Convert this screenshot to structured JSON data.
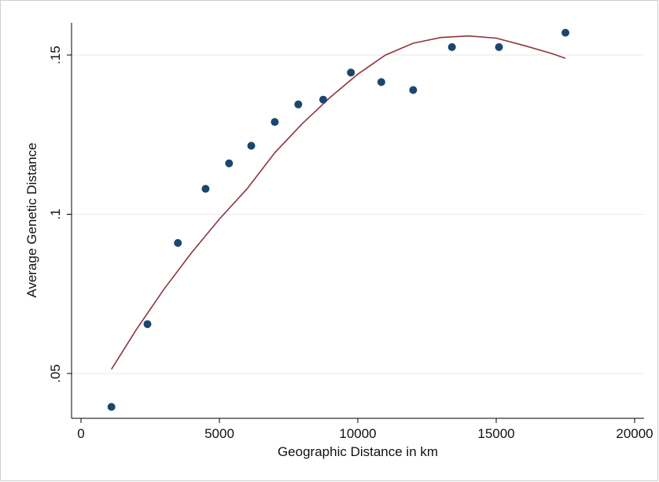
{
  "chart_data": {
    "type": "scatter",
    "title": "",
    "xlabel": "Geographic Distance in km",
    "ylabel": "Average Genetic Distance",
    "xlim": [
      0,
      20000
    ],
    "ylim": [
      0.04,
      0.16
    ],
    "grid": true,
    "legend": "none",
    "x_ticks": [
      {
        "value": 0,
        "label": "0"
      },
      {
        "value": 5000,
        "label": "5000"
      },
      {
        "value": 10000,
        "label": "10000"
      },
      {
        "value": 15000,
        "label": "15000"
      },
      {
        "value": 20000,
        "label": "20000"
      }
    ],
    "y_ticks": [
      {
        "value": 0.05,
        "label": ".05"
      },
      {
        "value": 0.1,
        "label": ".1"
      },
      {
        "value": 0.15,
        "label": ".15"
      }
    ],
    "series": [
      {
        "type": "scatter",
        "color": "#1a476f",
        "points": [
          {
            "x": 1100,
            "y": 0.0395
          },
          {
            "x": 2400,
            "y": 0.0655
          },
          {
            "x": 3500,
            "y": 0.091
          },
          {
            "x": 4500,
            "y": 0.108
          },
          {
            "x": 5350,
            "y": 0.116
          },
          {
            "x": 6150,
            "y": 0.1215
          },
          {
            "x": 7000,
            "y": 0.129
          },
          {
            "x": 7850,
            "y": 0.1345
          },
          {
            "x": 8750,
            "y": 0.136
          },
          {
            "x": 9750,
            "y": 0.1445
          },
          {
            "x": 10850,
            "y": 0.1415
          },
          {
            "x": 12000,
            "y": 0.139
          },
          {
            "x": 13400,
            "y": 0.1525
          },
          {
            "x": 15100,
            "y": 0.1525
          },
          {
            "x": 17500,
            "y": 0.157
          }
        ]
      },
      {
        "type": "line",
        "color": "#90353b",
        "points": [
          {
            "x": 1100,
            "y": 0.0513
          },
          {
            "x": 2000,
            "y": 0.0638
          },
          {
            "x": 3000,
            "y": 0.0765
          },
          {
            "x": 4000,
            "y": 0.088
          },
          {
            "x": 5000,
            "y": 0.0985
          },
          {
            "x": 6000,
            "y": 0.108
          },
          {
            "x": 7000,
            "y": 0.1193
          },
          {
            "x": 8000,
            "y": 0.1285
          },
          {
            "x": 9000,
            "y": 0.1367
          },
          {
            "x": 10000,
            "y": 0.144
          },
          {
            "x": 11000,
            "y": 0.15
          },
          {
            "x": 12000,
            "y": 0.1537
          },
          {
            "x": 13000,
            "y": 0.1555
          },
          {
            "x": 14000,
            "y": 0.156
          },
          {
            "x": 15000,
            "y": 0.1553
          },
          {
            "x": 16000,
            "y": 0.153
          },
          {
            "x": 17000,
            "y": 0.1505
          },
          {
            "x": 17500,
            "y": 0.149
          }
        ]
      }
    ]
  }
}
